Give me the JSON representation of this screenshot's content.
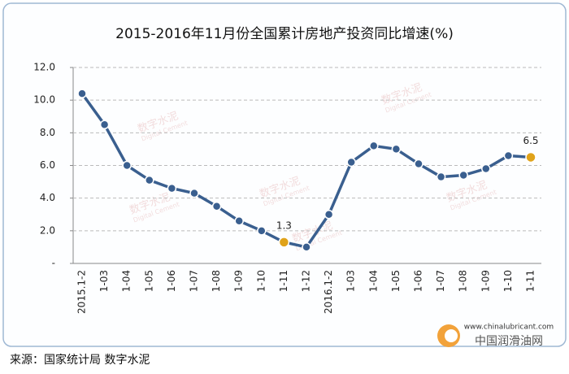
{
  "chart_data": {
    "type": "line",
    "title": "2015-2016年11月份全国累计房地产投资同比增速(%)",
    "categories": [
      "2015.1-2",
      "1-03",
      "1-04",
      "1-05",
      "1-06",
      "1-07",
      "1-08",
      "1-09",
      "1-10",
      "1-11",
      "1-12",
      "2016.1-2",
      "1-03",
      "1-04",
      "1-05",
      "1-06",
      "1-07",
      "1-08",
      "1-09",
      "1-10",
      "1-11"
    ],
    "series": [
      {
        "color": "#3a5f8f",
        "values": [
          10.4,
          8.5,
          6.0,
          5.1,
          4.6,
          4.3,
          3.5,
          2.6,
          2.0,
          1.3,
          1.0,
          3.0,
          6.2,
          7.2,
          7.0,
          6.1,
          5.3,
          5.4,
          5.8,
          6.6,
          6.5
        ],
        "value_labels": [
          null,
          null,
          null,
          null,
          null,
          null,
          null,
          null,
          null,
          "1.3",
          null,
          null,
          null,
          null,
          null,
          null,
          null,
          null,
          null,
          null,
          "6.5"
        ],
        "highlight_color": "#e0a31a"
      }
    ],
    "ylim": [
      0,
      12
    ],
    "yticks": [
      {
        "value": 0,
        "label": "-"
      },
      {
        "value": 2,
        "label": "2.0"
      },
      {
        "value": 4,
        "label": "4.0"
      },
      {
        "value": 6,
        "label": "6.0"
      },
      {
        "value": 8,
        "label": "8.0"
      },
      {
        "value": 10,
        "label": "10.0"
      },
      {
        "value": 12,
        "label": "12.0"
      }
    ],
    "grid": true,
    "watermark": "数字水泥",
    "watermark_sub": "Digital Cement"
  },
  "source": "来源：国家统计局 数字水泥",
  "logo": {
    "url": "www.chinalubricant.com",
    "name": "中国润滑油网"
  }
}
